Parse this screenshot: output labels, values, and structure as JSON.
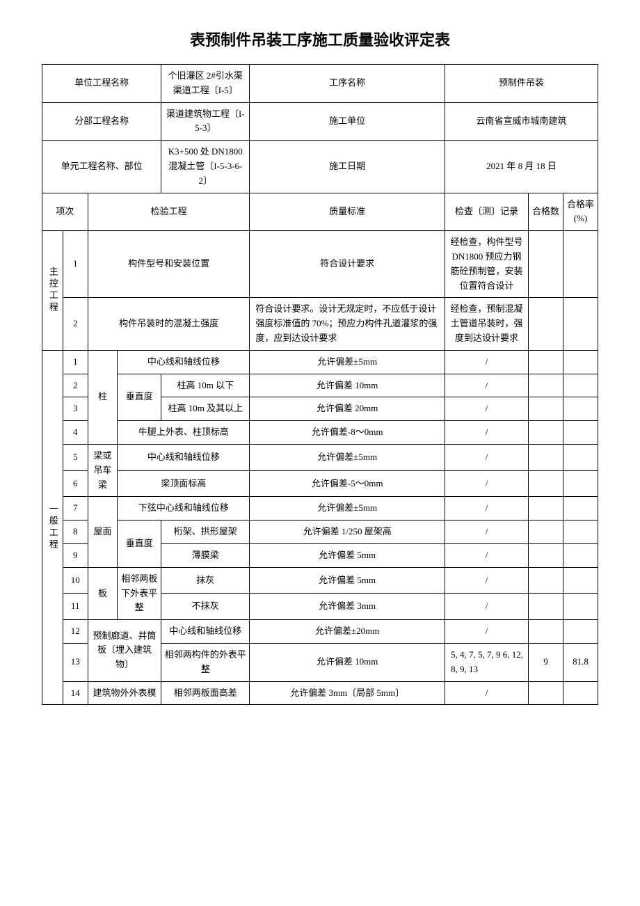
{
  "title": "表预制件吊装工序施工质量验收评定表",
  "header": {
    "row1": {
      "l1": "单位工程名称",
      "v1": "个旧灌区 2#引水渠渠道工程〔I-5〕",
      "l2": "工序名称",
      "v2": "预制件吊装"
    },
    "row2": {
      "l1": "分部工程名称",
      "v1": "渠道建筑物工程〔I-5-3〕",
      "l2": "施工单位",
      "v2": "云南省宣威市城南建筑"
    },
    "row3": {
      "l1": "单元工程名称、部位",
      "v1": "K3+500 处 DN1800 混凝土管〔I-5-3-6-2〕",
      "l2": "施工日期",
      "v2": "2021 年 8 月 18 日"
    }
  },
  "colhead": {
    "c1": "项次",
    "c2": "检验工程",
    "c3": "质量标准",
    "c4": "检查〔测〕记录",
    "c5": "合格数",
    "c6": "合格率(%)"
  },
  "main": {
    "label": "主控工程",
    "r1": {
      "n": "1",
      "item": "构件型号和安装位置",
      "std": "符合设计要求",
      "rec": "经检查，构件型号 DN1800 预应力钢筋砼预制管，安装位置符合设计"
    },
    "r2": {
      "n": "2",
      "item": "构件吊装时的混凝土强度",
      "std": "符合设计要求。设计无规定时，不应低于设计强度标准值的 70%；预应力构件孔道灌浆的强度，应到达设计要求",
      "rec": "经检查，预制混凝土管道吊装时，强度到达设计要求"
    }
  },
  "general": {
    "label": "一般工程",
    "g1_cat": "柱",
    "g1": {
      "n": "1",
      "item": "中心线和轴线位移",
      "std": "允许偏差±5mm",
      "rec": "/"
    },
    "g2_cat": "垂直度",
    "g2": {
      "n": "2",
      "item": "柱高 10m 以下",
      "std": "允许偏差 10mm",
      "rec": "/"
    },
    "g3": {
      "n": "3",
      "item": "柱高 10m 及其以上",
      "std": "允许偏差 20mm",
      "rec": "/"
    },
    "g4": {
      "n": "4",
      "item": "牛腿上外表、柱顶标高",
      "std": "允许偏差-8～0mm",
      "rec": "/"
    },
    "g5_cat": "梁或吊车梁",
    "g5": {
      "n": "5",
      "item": "中心线和轴线位移",
      "std": "允许偏差±5mm",
      "rec": "/"
    },
    "g6": {
      "n": "6",
      "item": "梁顶面标高",
      "std": "允许偏差-5～0mm",
      "rec": "/"
    },
    "g7_cat": "屋面",
    "g7": {
      "n": "7",
      "item": "下弦中心线和轴线位移",
      "std": "允许偏差±5mm",
      "rec": "/"
    },
    "g8_cat": "垂直度",
    "g8": {
      "n": "8",
      "item": "桁架、拱形屋架",
      "std": "允许偏差 1/250 屋架高",
      "rec": "/"
    },
    "g9": {
      "n": "9",
      "item": "薄膜梁",
      "std": "允许偏差 5mm",
      "rec": "/"
    },
    "g10_cat": "板",
    "g10_sub": "相邻两板下外表平整",
    "g10": {
      "n": "10",
      "item": "抹灰",
      "std": "允许偏差 5mm",
      "rec": "/"
    },
    "g11": {
      "n": "11",
      "item": "不抹灰",
      "std": "允许偏差 3mm",
      "rec": "/"
    },
    "g12_cat": "预制廊道、井筒板〔埋入建筑物〕",
    "g12": {
      "n": "12",
      "item": "中心线和轴线位移",
      "std": "允许偏差±20mm",
      "rec": "/"
    },
    "g13": {
      "n": "13",
      "item": "相邻两构件的外表平整",
      "std": "允许偏差 10mm",
      "rec": "5, 4, 7, 5, 7, 9 6, 12, 8, 9, 13",
      "ok": "9",
      "rate": "81.8"
    },
    "g14_cat": "建筑物外外表模",
    "g14": {
      "n": "14",
      "item": "相邻两板面高差",
      "std": "允许偏差 3mm〔局部 5mm〕",
      "rec": "/"
    }
  }
}
